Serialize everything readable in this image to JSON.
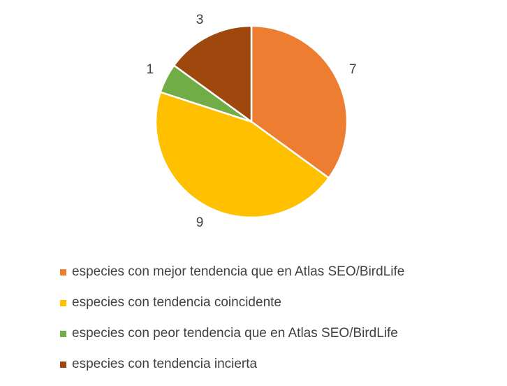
{
  "chart_data": {
    "type": "pie",
    "title": "",
    "start_angle_deg": 0,
    "direction": "clockwise",
    "legend_position": "bottom",
    "slices": [
      {
        "label": "especies con mejor tendencia que en Atlas SEO/BirdLife",
        "value": 7,
        "display_value": "7",
        "color": "#ED7D31"
      },
      {
        "label": "especies con tendencia coincidente",
        "value": 9,
        "display_value": "9",
        "color": "#FFC000"
      },
      {
        "label": "especies con peor tendencia que en Atlas SEO/BirdLife",
        "value": 1,
        "display_value": "1",
        "color": "#70AD47"
      },
      {
        "label": "especies con tendencia incierta",
        "value": 3,
        "display_value": "3",
        "color": "#9E480E"
      }
    ]
  }
}
